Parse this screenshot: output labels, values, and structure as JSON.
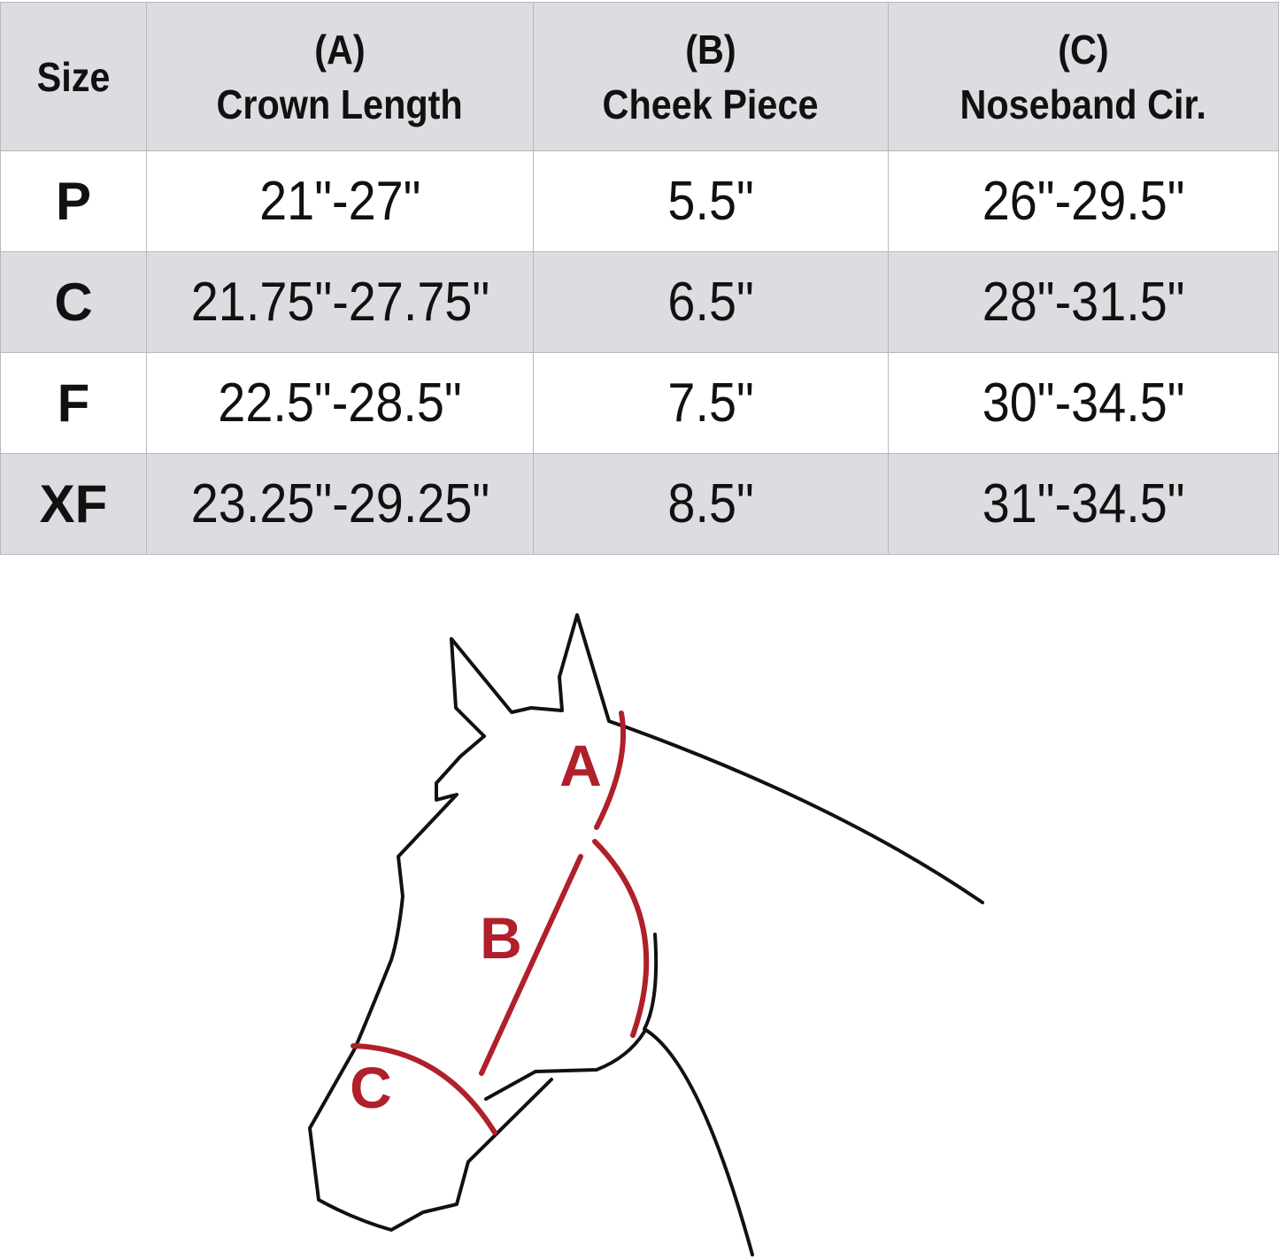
{
  "table": {
    "headers": [
      {
        "line1": "",
        "line2": "Size"
      },
      {
        "line1": "(A)",
        "line2": "Crown Length"
      },
      {
        "line1": "(B)",
        "line2": "Cheek Piece"
      },
      {
        "line1": "(C)",
        "line2": "Noseband Cir."
      }
    ],
    "rows": [
      {
        "size": "P",
        "crown": "21\"-27\"",
        "cheek": "5.5\"",
        "noseband": "26\"-29.5\""
      },
      {
        "size": "C",
        "crown": "21.75\"-27.75\"",
        "cheek": "6.5\"",
        "noseband": "28\"-31.5\""
      },
      {
        "size": "F",
        "crown": "22.5\"-28.5\"",
        "cheek": "7.5\"",
        "noseband": "30\"-34.5\""
      },
      {
        "size": "XF",
        "crown": "23.25\"-29.25\"",
        "cheek": "8.5\"",
        "noseband": "31\"-34.5\""
      }
    ],
    "header_bg": "#dcdde0",
    "alt_row_bg": "#dcdde0"
  },
  "diagram": {
    "labels": {
      "a": "A",
      "b": "B",
      "c": "C"
    },
    "measure_color": "#b0202a",
    "outline_color": "#111111"
  }
}
